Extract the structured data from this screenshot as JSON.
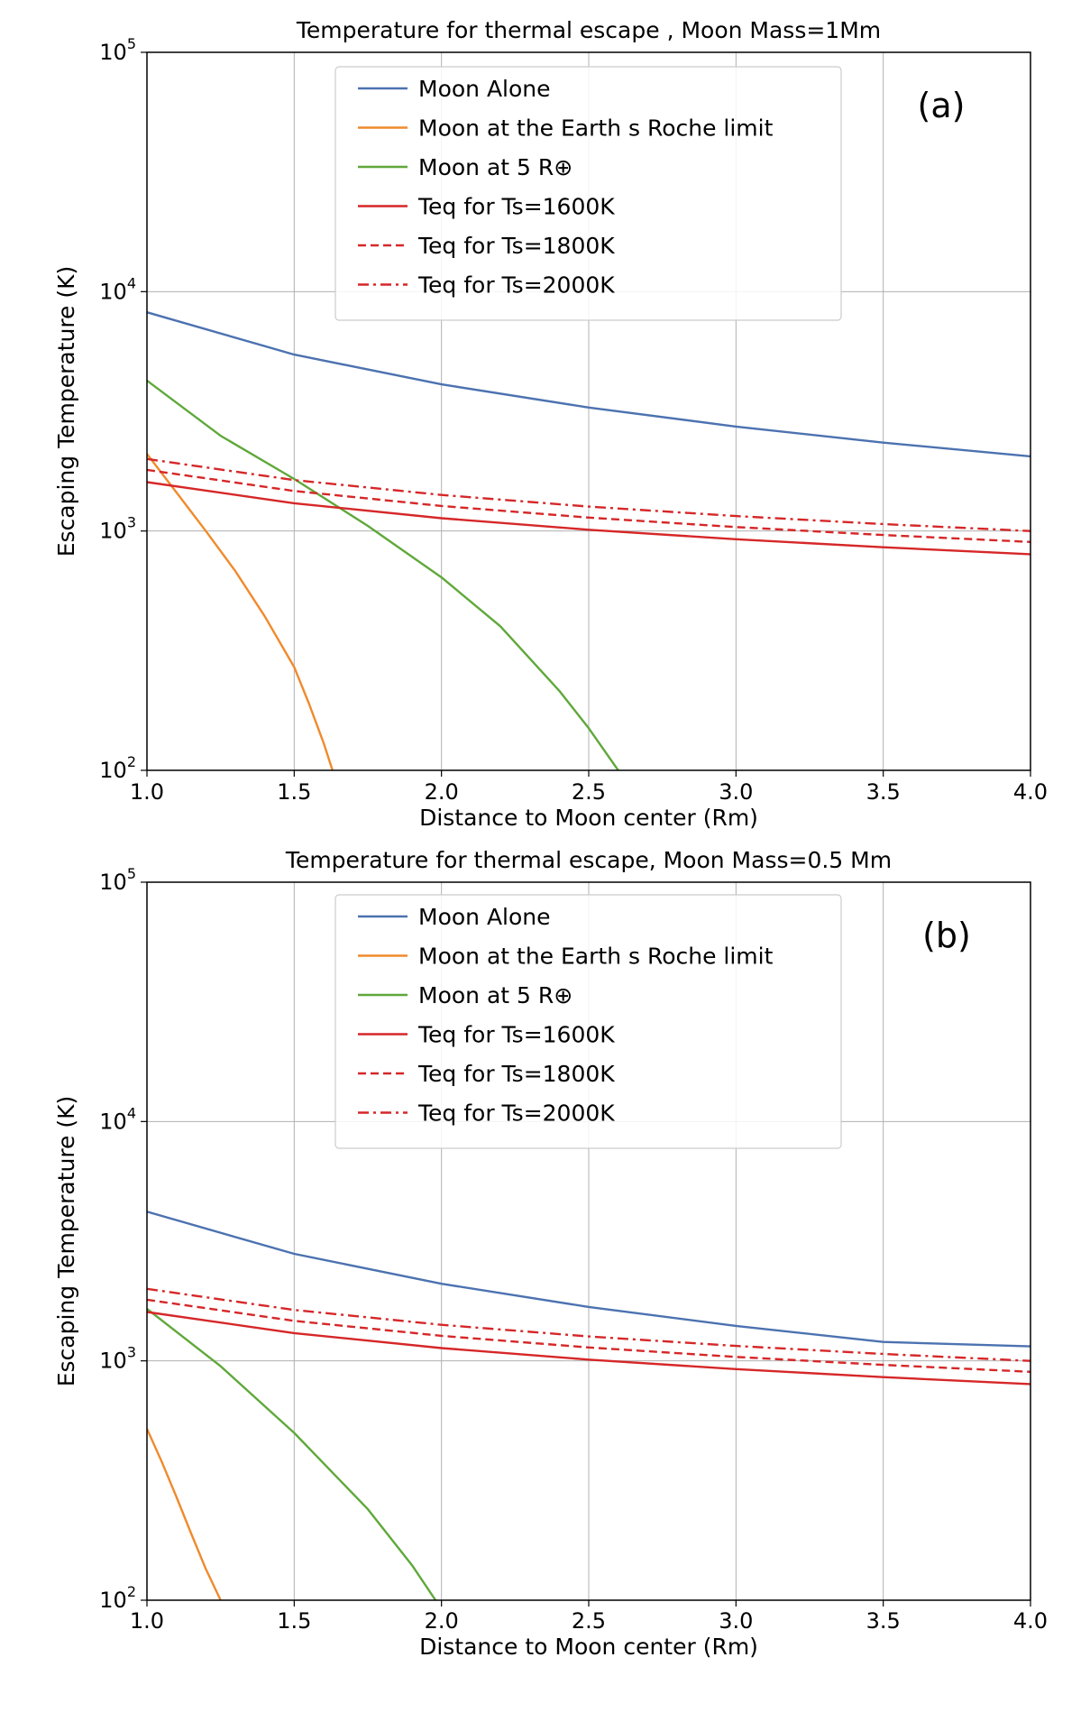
{
  "chart_data": [
    {
      "type": "line",
      "title": "Temperature for thermal escape , Moon Mass=1Mm",
      "panel_label": "(a)",
      "xlabel": "Distance to Moon center (Rm)",
      "ylabel": "Escaping Temperature (K)",
      "xlim": [
        1.0,
        4.0
      ],
      "ylim": [
        100,
        100000
      ],
      "yscale": "log",
      "grid": true,
      "legend_position": "top-center",
      "x_ticks": [
        "1.0",
        "1.5",
        "2.0",
        "2.5",
        "3.0",
        "3.5",
        "4.0"
      ],
      "y_ticks": [
        {
          "base": "10",
          "exp": "2"
        },
        {
          "base": "10",
          "exp": "3"
        },
        {
          "base": "10",
          "exp": "4"
        },
        {
          "base": "10",
          "exp": "5"
        }
      ],
      "series": [
        {
          "name": "Moon Alone",
          "color": "#4c72b0",
          "style": "solid",
          "x": [
            1.0,
            1.5,
            2.0,
            2.5,
            3.0,
            3.5,
            4.0
          ],
          "y": [
            8200,
            5460,
            4100,
            3280,
            2730,
            2340,
            2050
          ]
        },
        {
          "name": "Moon at the Earth s Roche limit",
          "color": "#f08a2c",
          "style": "solid",
          "x": [
            1.0,
            1.1,
            1.2,
            1.3,
            1.4,
            1.5,
            1.55,
            1.6,
            1.63
          ],
          "y": [
            2100,
            1450,
            1000,
            680,
            440,
            270,
            190,
            130,
            100
          ]
        },
        {
          "name": "Moon at 5 R⊕",
          "color": "#5fa83a",
          "style": "solid",
          "x": [
            1.0,
            1.25,
            1.5,
            1.75,
            2.0,
            2.2,
            2.4,
            2.5,
            2.6
          ],
          "y": [
            4250,
            2500,
            1650,
            1050,
            640,
            400,
            215,
            150,
            100
          ]
        },
        {
          "name": "Teq for Ts=1600K",
          "color": "#d62728",
          "style": "solid",
          "x": [
            1.0,
            1.5,
            2.0,
            2.5,
            3.0,
            3.5,
            4.0
          ],
          "y": [
            1600,
            1306,
            1131,
            1012,
            924,
            855,
            800
          ]
        },
        {
          "name": "Teq for Ts=1800K",
          "color": "#d62728",
          "style": "dashed",
          "x": [
            1.0,
            1.5,
            2.0,
            2.5,
            3.0,
            3.5,
            4.0
          ],
          "y": [
            1800,
            1470,
            1273,
            1138,
            1039,
            962,
            900
          ]
        },
        {
          "name": "Teq for Ts=2000K",
          "color": "#d62728",
          "style": "dashdot",
          "x": [
            1.0,
            1.5,
            2.0,
            2.5,
            3.0,
            3.5,
            4.0
          ],
          "y": [
            2000,
            1633,
            1414,
            1265,
            1155,
            1069,
            1000
          ]
        }
      ]
    },
    {
      "type": "line",
      "title": "Temperature for thermal escape,  Moon Mass=0.5 Mm",
      "panel_label": "(b)",
      "xlabel": "Distance to Moon center (Rm)",
      "ylabel": "Escaping Temperature (K)",
      "xlim": [
        1.0,
        4.0
      ],
      "ylim": [
        100,
        100000
      ],
      "yscale": "log",
      "grid": true,
      "legend_position": "top-center",
      "x_ticks": [
        "1.0",
        "1.5",
        "2.0",
        "2.5",
        "3.0",
        "3.5",
        "4.0"
      ],
      "y_ticks": [
        {
          "base": "10",
          "exp": "2"
        },
        {
          "base": "10",
          "exp": "3"
        },
        {
          "base": "10",
          "exp": "4"
        },
        {
          "base": "10",
          "exp": "5"
        }
      ],
      "series": [
        {
          "name": "Moon Alone",
          "color": "#4c72b0",
          "style": "solid",
          "x": [
            1.0,
            1.5,
            2.0,
            2.5,
            3.0,
            3.5,
            4.0
          ],
          "y": [
            4200,
            2800,
            2100,
            1680,
            1400,
            1200,
            1150
          ]
        },
        {
          "name": "Moon at the Earth s Roche limit",
          "color": "#f08a2c",
          "style": "solid",
          "x": [
            1.0,
            1.05,
            1.1,
            1.15,
            1.2,
            1.25
          ],
          "y": [
            520,
            380,
            270,
            190,
            135,
            100
          ]
        },
        {
          "name": "Moon at 5 R⊕",
          "color": "#5fa83a",
          "style": "solid",
          "x": [
            1.0,
            1.25,
            1.5,
            1.75,
            1.9,
            1.98
          ],
          "y": [
            1650,
            950,
            500,
            240,
            140,
            100
          ]
        },
        {
          "name": "Teq for Ts=1600K",
          "color": "#d62728",
          "style": "solid",
          "x": [
            1.0,
            1.5,
            2.0,
            2.5,
            3.0,
            3.5,
            4.0
          ],
          "y": [
            1600,
            1306,
            1131,
            1012,
            924,
            855,
            800
          ]
        },
        {
          "name": "Teq for Ts=1800K",
          "color": "#d62728",
          "style": "dashed",
          "x": [
            1.0,
            1.5,
            2.0,
            2.5,
            3.0,
            3.5,
            4.0
          ],
          "y": [
            1800,
            1470,
            1273,
            1138,
            1039,
            962,
            900
          ]
        },
        {
          "name": "Teq for Ts=2000K",
          "color": "#d62728",
          "style": "dashdot",
          "x": [
            1.0,
            1.5,
            2.0,
            2.5,
            3.0,
            3.5,
            4.0
          ],
          "y": [
            2000,
            1633,
            1414,
            1265,
            1155,
            1069,
            1000
          ]
        }
      ]
    }
  ]
}
